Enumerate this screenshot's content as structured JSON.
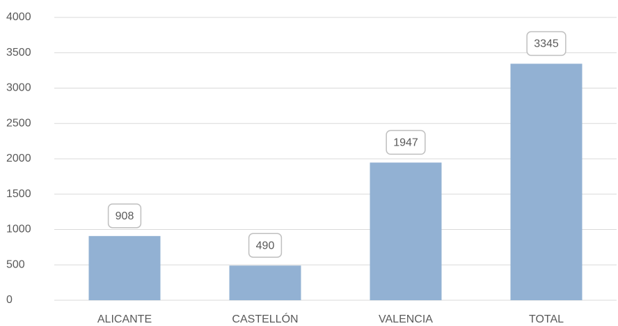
{
  "chart_data": {
    "type": "bar",
    "categories": [
      "ALICANTE",
      "CASTELLÓN",
      "VALENCIA",
      "TOTAL"
    ],
    "values": [
      908,
      490,
      1947,
      3345
    ],
    "color": "#92b1d3",
    "ylim": [
      0,
      4000
    ],
    "yticks": [
      0,
      500,
      1000,
      1500,
      2000,
      2500,
      3000,
      3500,
      4000
    ],
    "grid": true
  }
}
